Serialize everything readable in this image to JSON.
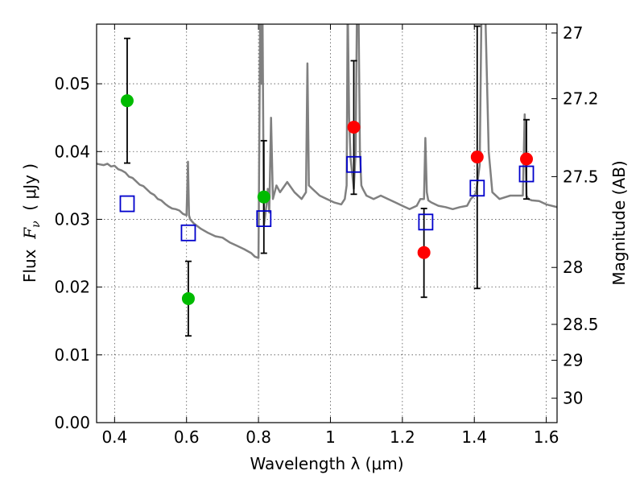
{
  "chart_data": {
    "type": "scatter",
    "xlabel": "Wavelength  λ (μm)",
    "ylabel_prefix": "Flux  ",
    "ylabel_math": "F",
    "ylabel_sub": "ν",
    "ylabel_suffix": "  ( μJy )",
    "y2label": "Magnitude (AB)",
    "xlim": [
      0.35,
      1.63
    ],
    "ylim": [
      0.0,
      0.0588
    ],
    "x_ticks": [
      0.4,
      0.6,
      0.8,
      1.0,
      1.2,
      1.4,
      1.6
    ],
    "x_tick_labels": [
      "0.4",
      "0.6",
      "0.8",
      "1",
      "1.2",
      "1.4",
      "1.6"
    ],
    "y_ticks": [
      0.0,
      0.01,
      0.02,
      0.03,
      0.04,
      0.05
    ],
    "y_tick_labels": [
      "0.00",
      "0.01",
      "0.02",
      "0.03",
      "0.04",
      "0.05"
    ],
    "y2_ticks": [
      {
        "label": "27",
        "flux": 0.0575
      },
      {
        "label": "27.2",
        "flux": 0.0478
      },
      {
        "label": "27.5",
        "flux": 0.0363
      },
      {
        "label": "28",
        "flux": 0.0229
      },
      {
        "label": "28.5",
        "flux": 0.0145
      },
      {
        "label": "29",
        "flux": 0.0092
      },
      {
        "label": "30",
        "flux": 0.0036
      }
    ],
    "grid": true,
    "colors": {
      "model": "#808080",
      "green": "#00bb00",
      "red": "#ff0000",
      "box": "#0000cc",
      "errorbar": "#000000"
    },
    "photometry": [
      {
        "x": 0.435,
        "y": 0.0475,
        "ylo": 0.0383,
        "yhi": 0.0567,
        "color": "green"
      },
      {
        "x": 0.605,
        "y": 0.0183,
        "ylo": 0.0128,
        "yhi": 0.0238,
        "color": "green"
      },
      {
        "x": 0.815,
        "y": 0.0333,
        "ylo": 0.025,
        "yhi": 0.0416,
        "color": "green"
      },
      {
        "x": 1.065,
        "y": 0.0436,
        "ylo": 0.0337,
        "yhi": 0.0534,
        "color": "red"
      },
      {
        "x": 1.26,
        "y": 0.0251,
        "ylo": 0.0185,
        "yhi": 0.0316,
        "color": "red"
      },
      {
        "x": 1.408,
        "y": 0.0392,
        "ylo": 0.0198,
        "yhi": 0.0585,
        "color": "red"
      },
      {
        "x": 1.545,
        "y": 0.0389,
        "ylo": 0.033,
        "yhi": 0.0447,
        "color": "red"
      }
    ],
    "model_photometry": [
      {
        "x": 0.435,
        "y": 0.0323
      },
      {
        "x": 0.605,
        "y": 0.028
      },
      {
        "x": 0.815,
        "y": 0.0301
      },
      {
        "x": 1.065,
        "y": 0.0381
      },
      {
        "x": 1.265,
        "y": 0.0296
      },
      {
        "x": 1.408,
        "y": 0.0346
      },
      {
        "x": 1.545,
        "y": 0.0367
      }
    ],
    "model_spectrum": {
      "x": [
        0.35,
        0.36,
        0.37,
        0.38,
        0.39,
        0.4,
        0.41,
        0.42,
        0.43,
        0.44,
        0.45,
        0.46,
        0.47,
        0.48,
        0.49,
        0.5,
        0.51,
        0.52,
        0.53,
        0.54,
        0.55,
        0.56,
        0.57,
        0.58,
        0.59,
        0.6,
        0.604,
        0.607,
        0.61,
        0.62,
        0.64,
        0.66,
        0.68,
        0.7,
        0.72,
        0.74,
        0.76,
        0.78,
        0.79,
        0.8,
        0.805,
        0.808,
        0.811,
        0.815,
        0.822,
        0.826,
        0.83,
        0.835,
        0.84,
        0.85,
        0.86,
        0.88,
        0.9,
        0.92,
        0.932,
        0.936,
        0.94,
        0.95,
        0.97,
        0.99,
        1.01,
        1.03,
        1.04,
        1.045,
        1.048,
        1.052,
        1.056,
        1.06,
        1.065,
        1.07,
        1.074,
        1.078,
        1.082,
        1.086,
        1.09,
        1.1,
        1.12,
        1.14,
        1.16,
        1.18,
        1.2,
        1.22,
        1.24,
        1.25,
        1.26,
        1.264,
        1.268,
        1.272,
        1.28,
        1.3,
        1.32,
        1.34,
        1.36,
        1.38,
        1.385,
        1.39,
        1.4,
        1.405,
        1.41,
        1.415,
        1.42,
        1.43,
        1.44,
        1.45,
        1.47,
        1.5,
        1.52,
        1.535,
        1.54,
        1.545,
        1.55,
        1.56,
        1.58,
        1.6,
        1.63
      ],
      "y": [
        0.0382,
        0.0381,
        0.038,
        0.0382,
        0.0378,
        0.0379,
        0.0374,
        0.0372,
        0.0369,
        0.0363,
        0.0361,
        0.0356,
        0.0351,
        0.0349,
        0.0344,
        0.0339,
        0.0336,
        0.033,
        0.0328,
        0.0323,
        0.0319,
        0.0316,
        0.0315,
        0.0313,
        0.0308,
        0.0306,
        0.0385,
        0.0306,
        0.03,
        0.0294,
        0.0286,
        0.028,
        0.0275,
        0.0273,
        0.0266,
        0.0261,
        0.0256,
        0.025,
        0.0245,
        0.0243,
        0.062,
        0.05,
        0.062,
        0.029,
        0.032,
        0.0345,
        0.031,
        0.045,
        0.033,
        0.035,
        0.034,
        0.0355,
        0.034,
        0.033,
        0.034,
        0.053,
        0.035,
        0.0345,
        0.0335,
        0.033,
        0.0325,
        0.0322,
        0.033,
        0.035,
        0.062,
        0.045,
        0.039,
        0.037,
        0.0345,
        0.04,
        0.062,
        0.062,
        0.04,
        0.035,
        0.0345,
        0.0335,
        0.033,
        0.0335,
        0.033,
        0.0325,
        0.032,
        0.0315,
        0.032,
        0.033,
        0.033,
        0.042,
        0.034,
        0.0328,
        0.0325,
        0.032,
        0.0318,
        0.0315,
        0.0318,
        0.032,
        0.0325,
        0.033,
        0.0335,
        0.034,
        0.036,
        0.038,
        0.062,
        0.062,
        0.04,
        0.034,
        0.033,
        0.0335,
        0.0335,
        0.0335,
        0.0455,
        0.0335,
        0.033,
        0.0328,
        0.0327,
        0.0322,
        0.0318
      ]
    }
  }
}
